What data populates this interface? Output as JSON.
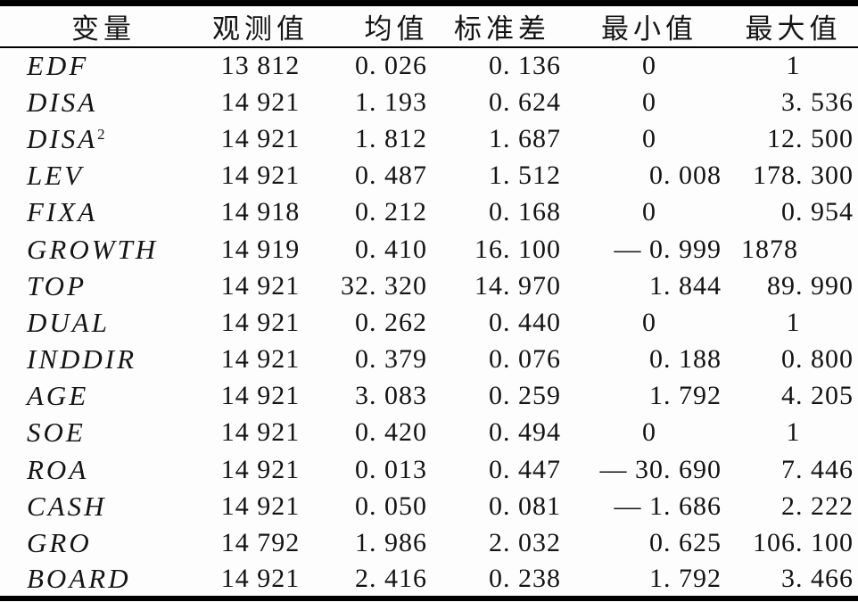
{
  "table": {
    "columns": [
      {
        "label": "变量",
        "name": "variable"
      },
      {
        "label": "观测值",
        "name": "observations"
      },
      {
        "label": "均值",
        "name": "mean"
      },
      {
        "label": "标准差",
        "name": "std-dev"
      },
      {
        "label": "最小值",
        "name": "min"
      },
      {
        "label": "最大值",
        "name": "max"
      }
    ],
    "rows": [
      {
        "variable": "EDF",
        "sup": "",
        "values": [
          "13 812",
          "0. 026",
          "0. 136",
          "0",
          "1"
        ],
        "align": [
          "",
          "",
          "",
          "center",
          "center"
        ]
      },
      {
        "variable": "DISA",
        "sup": "",
        "values": [
          "14 921",
          "1. 193",
          "0. 624",
          "0",
          "3. 536"
        ],
        "align": [
          "",
          "",
          "",
          "center",
          ""
        ]
      },
      {
        "variable": "DISA",
        "sup": "2",
        "values": [
          "14 921",
          "1. 812",
          "1. 687",
          "0",
          "12. 500"
        ],
        "align": [
          "",
          "",
          "",
          "center",
          ""
        ]
      },
      {
        "variable": "LEV",
        "sup": "",
        "values": [
          "14 921",
          "0. 487",
          "1. 512",
          "0. 008",
          "178. 300"
        ],
        "align": [
          "",
          "",
          "",
          "",
          ""
        ]
      },
      {
        "variable": "FIXA",
        "sup": "",
        "values": [
          "14 918",
          "0. 212",
          "0. 168",
          "0",
          "0. 954"
        ],
        "align": [
          "",
          "",
          "",
          "center",
          ""
        ]
      },
      {
        "variable": "GROWTH",
        "sup": "",
        "values": [
          "14 919",
          "0. 410",
          "16. 100",
          "— 0. 999",
          "1878"
        ],
        "align": [
          "",
          "",
          "",
          "",
          "left"
        ]
      },
      {
        "variable": "TOP",
        "sup": "",
        "values": [
          "14 921",
          "32. 320",
          "14. 970",
          "1. 844",
          "89. 990"
        ],
        "align": [
          "",
          "",
          "",
          "",
          ""
        ]
      },
      {
        "variable": "DUAL",
        "sup": "",
        "values": [
          "14 921",
          "0. 262",
          "0. 440",
          "0",
          "1"
        ],
        "align": [
          "",
          "",
          "",
          "center",
          "center"
        ]
      },
      {
        "variable": "INDDIR",
        "sup": "",
        "values": [
          "14 921",
          "0. 379",
          "0. 076",
          "0. 188",
          "0. 800"
        ],
        "align": [
          "",
          "",
          "",
          "",
          ""
        ]
      },
      {
        "variable": "AGE",
        "sup": "",
        "values": [
          "14 921",
          "3. 083",
          "0. 259",
          "1. 792",
          "4. 205"
        ],
        "align": [
          "",
          "",
          "",
          "",
          ""
        ]
      },
      {
        "variable": "SOE",
        "sup": "",
        "values": [
          "14 921",
          "0. 420",
          "0. 494",
          "0",
          "1"
        ],
        "align": [
          "",
          "",
          "",
          "center",
          "center"
        ]
      },
      {
        "variable": "ROA",
        "sup": "",
        "values": [
          "14 921",
          "0. 013",
          "0. 447",
          "— 30. 690",
          "7. 446"
        ],
        "align": [
          "",
          "",
          "",
          "",
          ""
        ]
      },
      {
        "variable": "CASH",
        "sup": "",
        "values": [
          "14 921",
          "0. 050",
          "0. 081",
          "— 1. 686",
          "2. 222"
        ],
        "align": [
          "",
          "",
          "",
          "",
          ""
        ]
      },
      {
        "variable": "GRO",
        "sup": "",
        "values": [
          "14 792",
          "1. 986",
          "2. 032",
          "0. 625",
          "106. 100"
        ],
        "align": [
          "",
          "",
          "",
          "",
          ""
        ]
      },
      {
        "variable": "BOARD",
        "sup": "",
        "values": [
          "14 921",
          "2. 416",
          "0. 238",
          "1. 792",
          "3. 466"
        ],
        "align": [
          "",
          "",
          "",
          "",
          ""
        ]
      }
    ]
  },
  "colors": {
    "text": "#141414",
    "rule": "#000000",
    "background": "#fdfdfd"
  }
}
